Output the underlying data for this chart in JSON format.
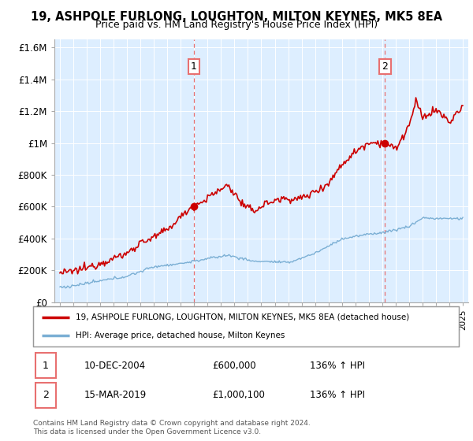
{
  "title": "19, ASHPOLE FURLONG, LOUGHTON, MILTON KEYNES, MK5 8EA",
  "subtitle": "Price paid vs. HM Land Registry's House Price Index (HPI)",
  "sale1_date": "10-DEC-2004",
  "sale1_price": 600000,
  "sale1_price_str": "£600,000",
  "sale1_hpi": "136% ↑ HPI",
  "sale2_date": "15-MAR-2019",
  "sale2_price": 1000100,
  "sale2_price_str": "£1,000,100",
  "sale2_hpi": "136% ↑ HPI",
  "red_color": "#cc0000",
  "blue_color": "#7bafd4",
  "dashed_red": "#e87070",
  "legend1": "19, ASHPOLE FURLONG, LOUGHTON, MILTON KEYNES, MK5 8EA (detached house)",
  "legend2": "HPI: Average price, detached house, Milton Keynes",
  "footer": "Contains HM Land Registry data © Crown copyright and database right 2024.\nThis data is licensed under the Open Government Licence v3.0.",
  "ylim": [
    0,
    1650000
  ],
  "yticks": [
    0,
    200000,
    400000,
    600000,
    800000,
    1000000,
    1200000,
    1400000,
    1600000
  ],
  "ytick_labels": [
    "£0",
    "£200K",
    "£400K",
    "£600K",
    "£800K",
    "£1M",
    "£1.2M",
    "£1.4M",
    "£1.6M"
  ],
  "background_color": "#ddeeff",
  "sale1_x": 2004.96,
  "sale2_x": 2019.21,
  "xlim_left": 1994.6,
  "xlim_right": 2025.4
}
